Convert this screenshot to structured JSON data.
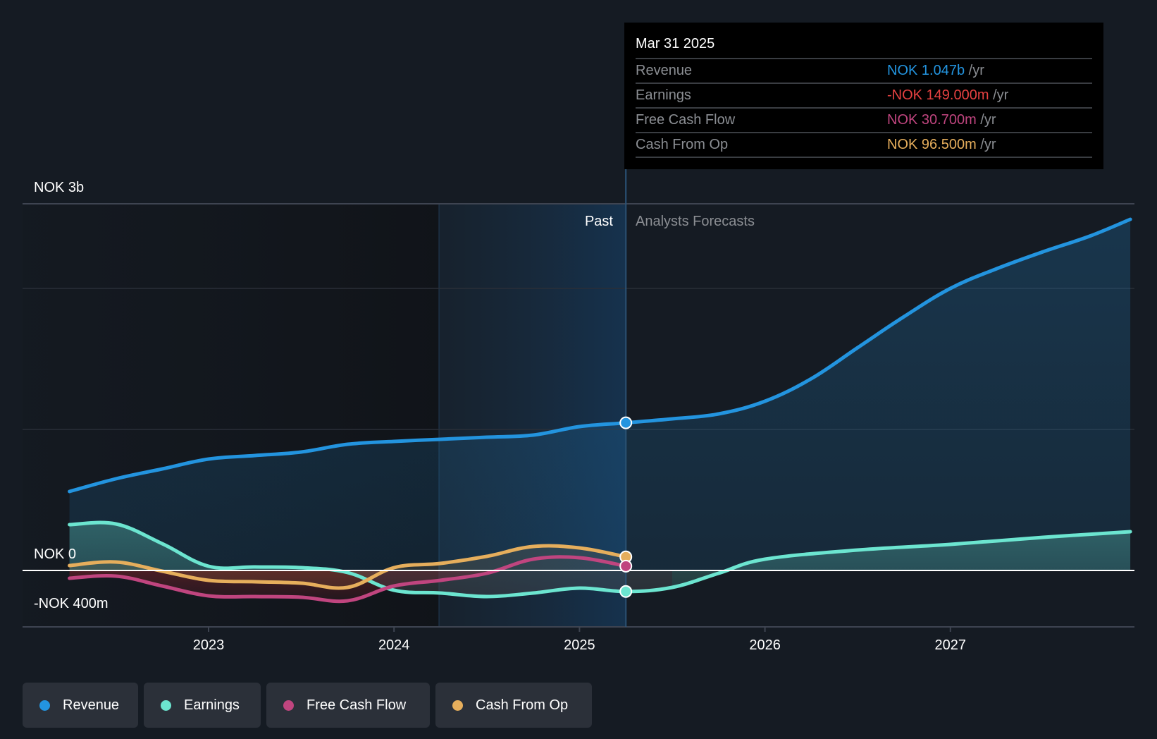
{
  "chart_data": {
    "type": "line",
    "title": "",
    "currency": "NOK",
    "xlabel": "",
    "ylabel": "",
    "x_ticks": [
      "2023",
      "2024",
      "2025",
      "2026",
      "2027"
    ],
    "x_range": [
      2022.25,
      2028.0
    ],
    "y_range_millions": [
      -400,
      2600
    ],
    "y_tick_labels": [
      {
        "value": 2600,
        "label": "NOK 3b"
      },
      {
        "value": 0,
        "label": "NOK 0"
      },
      {
        "value": -400,
        "label": "-NOK 400m"
      }
    ],
    "gridlines_millions": [
      1000,
      2000
    ],
    "grid": true,
    "legend_position": "bottom-left",
    "past_region": {
      "start": 2024.25,
      "end": 2025.25,
      "label": "Past"
    },
    "forecast_label": "Analysts Forecasts",
    "cursor_x": 2025.25,
    "series": [
      {
        "name": "Revenue",
        "key": "revenue",
        "color": "#2394df",
        "x": [
          2022.25,
          2022.5,
          2022.75,
          2023.0,
          2023.25,
          2023.5,
          2023.75,
          2024.0,
          2024.25,
          2024.5,
          2024.75,
          2025.0,
          2025.25,
          2025.5,
          2025.75,
          2026.0,
          2026.25,
          2026.5,
          2026.75,
          2027.0,
          2027.25,
          2027.5,
          2027.75,
          2027.97
        ],
        "values": [
          560,
          650,
          720,
          790,
          815,
          840,
          895,
          915,
          930,
          945,
          960,
          1020,
          1047,
          1075,
          1110,
          1200,
          1360,
          1580,
          1800,
          2000,
          2140,
          2260,
          2370,
          2490
        ]
      },
      {
        "name": "Earnings",
        "key": "earnings",
        "color": "#6ce5d0",
        "x": [
          2022.25,
          2022.5,
          2022.75,
          2023.0,
          2023.25,
          2023.5,
          2023.75,
          2024.0,
          2024.25,
          2024.5,
          2024.75,
          2025.0,
          2025.25,
          2025.5,
          2025.75,
          2026.0,
          2026.5,
          2027.0,
          2027.5,
          2027.97
        ],
        "values": [
          325,
          330,
          190,
          30,
          25,
          20,
          -15,
          -140,
          -160,
          -185,
          -160,
          -125,
          -149,
          -120,
          -20,
          80,
          145,
          185,
          235,
          275
        ]
      },
      {
        "name": "Free Cash Flow",
        "key": "fcf",
        "color": "#c0457f",
        "x": [
          2022.25,
          2022.5,
          2022.75,
          2023.0,
          2023.25,
          2023.5,
          2023.75,
          2024.0,
          2024.25,
          2024.5,
          2024.75,
          2025.0,
          2025.25
        ],
        "values": [
          -55,
          -40,
          -110,
          -180,
          -185,
          -190,
          -215,
          -110,
          -70,
          -20,
          80,
          90,
          30.7
        ]
      },
      {
        "name": "Cash From Op",
        "key": "cfo",
        "color": "#e6ae5c",
        "x": [
          2022.25,
          2022.5,
          2022.75,
          2023.0,
          2023.25,
          2023.5,
          2023.75,
          2024.0,
          2024.25,
          2024.5,
          2024.75,
          2025.0,
          2025.25
        ],
        "values": [
          35,
          60,
          -5,
          -70,
          -80,
          -90,
          -120,
          20,
          50,
          100,
          170,
          160,
          96.5
        ]
      }
    ]
  },
  "tooltip": {
    "date": "Mar 31 2025",
    "rows": [
      {
        "label": "Revenue",
        "value": "NOK 1.047b",
        "unit": "/yr",
        "color": "#2394df"
      },
      {
        "label": "Earnings",
        "value": "-NOK 149.000m",
        "unit": "/yr",
        "color": "#e64141"
      },
      {
        "label": "Free Cash Flow",
        "value": "NOK 30.700m",
        "unit": "/yr",
        "color": "#c0457f"
      },
      {
        "label": "Cash From Op",
        "value": "NOK 96.500m",
        "unit": "/yr",
        "color": "#e6ae5c"
      }
    ]
  },
  "legend": [
    {
      "label": "Revenue",
      "color": "#2394df"
    },
    {
      "label": "Earnings",
      "color": "#6ce5d0"
    },
    {
      "label": "Free Cash Flow",
      "color": "#c0457f"
    },
    {
      "label": "Cash From Op",
      "color": "#e6ae5c"
    }
  ]
}
